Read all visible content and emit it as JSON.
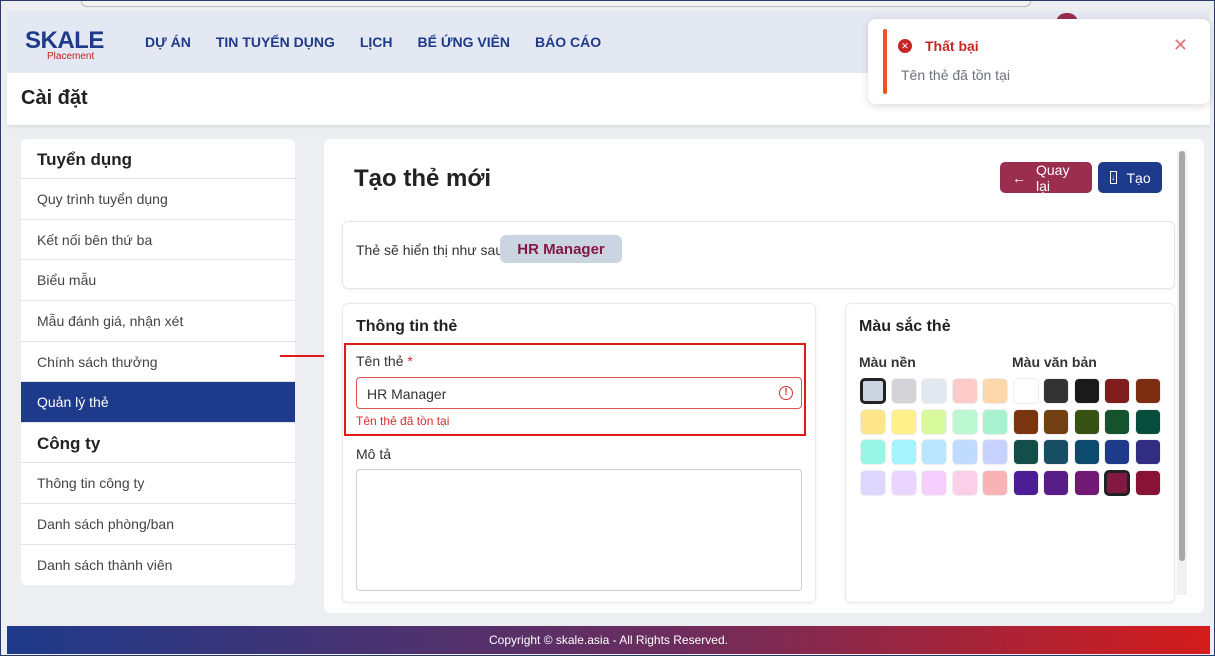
{
  "brand": {
    "logo": "SKALE",
    "sub": "Placement"
  },
  "nav": [
    "DỰ ÁN",
    "TIN TUYỂN DỤNG",
    "LỊCH",
    "BỂ ỨNG VIÊN",
    "BÁO CÁO"
  ],
  "page_title": "Cài đặt",
  "sidebar": {
    "section1": "Tuyển dụng",
    "items1": [
      "Quy trình tuyển dụng",
      "Kết nối bên thứ ba",
      "Biểu mẫu",
      "Mẫu đánh giá, nhận xét",
      "Chính sách thưởng",
      "Quản lý thẻ"
    ],
    "section2": "Công ty",
    "items2": [
      "Thông tin công ty",
      "Danh sách phòng/ban",
      "Danh sách thành viên"
    ],
    "active": "Quản lý thẻ"
  },
  "main": {
    "title": "Tạo thẻ mới",
    "back_label": "Quay lại",
    "create_label": "Tạo",
    "preview_label": "Thẻ sẽ hiển thị như sau:",
    "tag_text": "HR Manager",
    "info_title": "Thông tin thẻ",
    "name_label": "Tên thẻ",
    "required_mark": "*",
    "name_value": "HR Manager",
    "name_error": "Tên thẻ đã tồn tại",
    "desc_label": "Mô tả",
    "desc_value": "",
    "color_title": "Màu sắc thẻ",
    "bg_label": "Màu nền",
    "text_label": "Màu văn bản",
    "bg_colors": [
      "#cbd5e1",
      "#d4d4d8",
      "#e2e8f0",
      "#fecaca",
      "#fed7aa",
      "#fde68a",
      "#fef08a",
      "#d9f99d",
      "#bbf7d0",
      "#a7f3d0",
      "#99f6e4",
      "#a5f3fc",
      "#bae6fd",
      "#bfdbfe",
      "#c7d2fe",
      "#ddd6fe",
      "#e9d5ff",
      "#f5d0fe",
      "#fbcfe8",
      "#f8b4b4"
    ],
    "text_colors": [
      "#ffffff",
      "#333333",
      "#1a1a1a",
      "#7f1d1d",
      "#7c2d12",
      "#78350f",
      "#713f12",
      "#365314",
      "#14532d",
      "#064e3b",
      "#134e4a",
      "#164e63",
      "#0c4a6e",
      "#1e3a8a",
      "#312e81",
      "#4c1d95",
      "#581c87",
      "#701a75",
      "#831843",
      "#881337"
    ],
    "selected_bg": "#cbd5e1",
    "selected_text": "#831843"
  },
  "toast": {
    "title": "Thất bại",
    "message": "Tên thẻ đã tồn tại"
  },
  "footer": "Copyright © skale.asia - All Rights Reserved."
}
